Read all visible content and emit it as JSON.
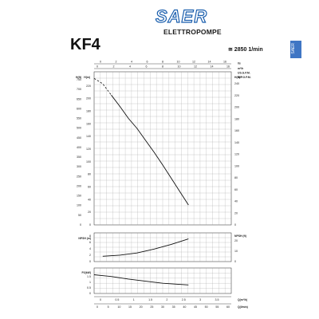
{
  "header": {
    "brand_logo": "SAER",
    "brand_sub": "ELETTROPOMPE",
    "model": "KF4",
    "speed": "≅ 2850 1/min",
    "side_tab": "SAER",
    "colors": {
      "brand_blue": "#1b5fae",
      "side_tab": "#3f76c4"
    }
  },
  "chart_data": [
    {
      "id": "performance",
      "type": "line",
      "top_axis_1": {
        "unit": "l/s",
        "ticks": [
          "0",
          "2",
          "4",
          "6",
          "8",
          "10",
          "12",
          "14",
          "16"
        ]
      },
      "top_axis_2": {
        "unit": "m³/h",
        "ticks": [
          "0",
          "2",
          "4",
          "6",
          "8",
          "10",
          "12",
          "14",
          "16"
        ]
      },
      "flow_labels": [
        "US.G.P.M.",
        "IMP.G.P.M."
      ],
      "left_axis_1": {
        "unit": "H(m)",
        "ticks": [
          "0",
          "10",
          "20",
          "30",
          "40",
          "50",
          "60",
          "70",
          "80",
          "90",
          "100",
          "110",
          "120",
          "130",
          "140",
          "150",
          "160",
          "170",
          "180",
          "190",
          "200",
          "210",
          "220",
          "230"
        ]
      },
      "left_axis_2": {
        "unit": "H(ft)",
        "ticks": [
          "0",
          "50",
          "100",
          "150",
          "200",
          "250",
          "300",
          "350",
          "400",
          "450",
          "500",
          "550",
          "600",
          "650",
          "700",
          "750"
        ]
      },
      "right_axis": {
        "unit": "H(ft)",
        "ticks": [
          "0",
          "20",
          "40",
          "60",
          "80",
          "100",
          "120",
          "140",
          "160",
          "180",
          "200",
          "220",
          "240"
        ]
      },
      "series": [
        {
          "values": [
            [
              0,
              220
            ],
            [
              1,
              212
            ],
            [
              2,
              195
            ],
            [
              3,
              178
            ],
            [
              4,
              160
            ],
            [
              5,
              145
            ],
            [
              6,
              127
            ],
            [
              7,
              109
            ],
            [
              8,
              90
            ],
            [
              9,
              70
            ],
            [
              10,
              50
            ],
            [
              11,
              30
            ]
          ]
        }
      ]
    },
    {
      "id": "npsh",
      "type": "line",
      "left_unit": "NPSH (m)",
      "right_unit": "NPSH (ft)",
      "left_ticks": [
        "0",
        "2",
        "4",
        "6",
        "8"
      ],
      "right_ticks": [
        "0",
        "10",
        "20"
      ],
      "series": [
        {
          "values": [
            [
              1,
              1.5
            ],
            [
              3,
              1.8
            ],
            [
              5,
              2.4
            ],
            [
              7,
              3.5
            ],
            [
              9,
              4.8
            ],
            [
              11,
              6.3
            ]
          ]
        }
      ]
    },
    {
      "id": "power",
      "type": "line",
      "left_unit": "P2(kW)",
      "left_ticks": [
        "0",
        "0.5",
        "1",
        "1.5"
      ],
      "series": [
        {
          "values": [
            [
              0,
              1.1
            ],
            [
              2,
              1.0
            ],
            [
              4,
              0.85
            ],
            [
              6,
              0.72
            ],
            [
              8,
              0.6
            ],
            [
              11,
              0.5
            ]
          ]
        }
      ],
      "bottom_axis_1": {
        "unit": "Q(m³/h)",
        "ticks": [
          "0",
          "0.5",
          "1",
          "1.5",
          "2",
          "2.5",
          "3",
          "3.5"
        ]
      },
      "bottom_axis_2": {
        "unit": "Q(l/min)",
        "ticks": [
          "0",
          "5",
          "10",
          "15",
          "20",
          "25",
          "30",
          "35",
          "40",
          "45",
          "50",
          "55",
          "60"
        ]
      }
    }
  ]
}
